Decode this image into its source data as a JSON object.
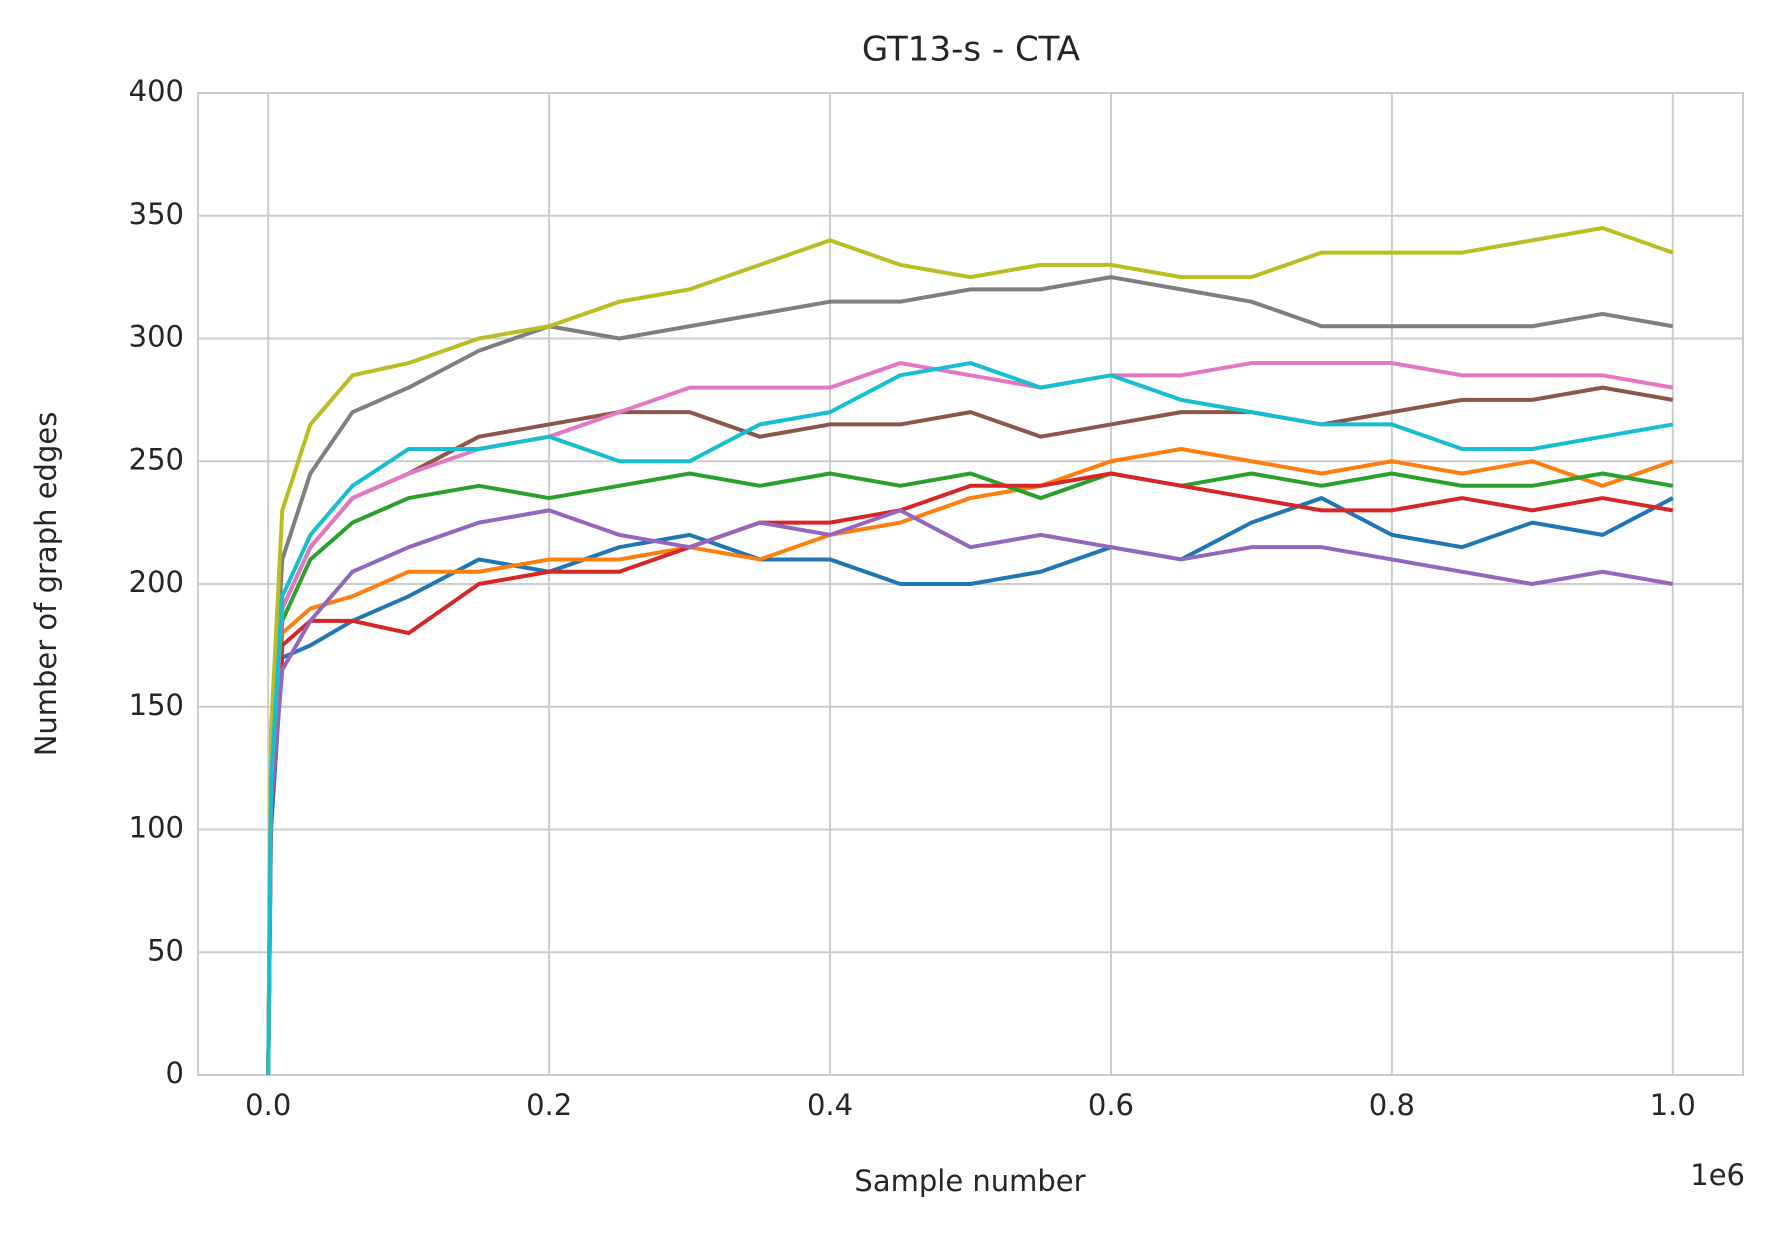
{
  "chart_data": {
    "type": "line",
    "title": "GT13-s - CTA",
    "x_label": "Sample number",
    "y_label": "Number of graph edges",
    "x_offset_label": "1e6",
    "x": [
      0,
      0.002,
      0.01,
      0.03,
      0.06,
      0.1,
      0.15,
      0.2,
      0.25,
      0.3,
      0.35,
      0.4,
      0.45,
      0.5,
      0.55,
      0.6,
      0.65,
      0.7,
      0.75,
      0.8,
      0.85,
      0.9,
      0.95,
      1.0
    ],
    "series": [
      {
        "color": "#1f77b4",
        "values": [
          0,
          100,
          170,
          175,
          185,
          195,
          210,
          205,
          215,
          220,
          210,
          210,
          200,
          200,
          205,
          215,
          210,
          225,
          235,
          220,
          215,
          225,
          220,
          235
        ]
      },
      {
        "color": "#ff7f0e",
        "values": [
          0,
          110,
          180,
          190,
          195,
          205,
          205,
          210,
          210,
          215,
          210,
          220,
          225,
          235,
          240,
          250,
          255,
          250,
          245,
          250,
          245,
          250,
          240,
          250
        ]
      },
      {
        "color": "#2ca02c",
        "values": [
          0,
          115,
          185,
          210,
          225,
          235,
          240,
          235,
          240,
          245,
          240,
          245,
          240,
          245,
          235,
          245,
          240,
          245,
          240,
          245,
          240,
          240,
          245,
          240
        ]
      },
      {
        "color": "#d62728",
        "values": [
          0,
          105,
          175,
          185,
          185,
          180,
          200,
          205,
          205,
          215,
          225,
          225,
          230,
          240,
          240,
          245,
          240,
          235,
          230,
          230,
          235,
          230,
          235,
          230
        ]
      },
      {
        "color": "#9467bd",
        "values": [
          0,
          110,
          165,
          185,
          205,
          215,
          225,
          230,
          220,
          215,
          225,
          220,
          230,
          215,
          220,
          215,
          210,
          215,
          215,
          210,
          205,
          200,
          205,
          200
        ]
      },
      {
        "color": "#8c564b",
        "values": [
          0,
          120,
          190,
          215,
          235,
          245,
          260,
          265,
          270,
          270,
          260,
          265,
          265,
          270,
          260,
          265,
          270,
          270,
          265,
          270,
          275,
          275,
          280,
          275
        ]
      },
      {
        "color": "#e377c2",
        "values": [
          0,
          120,
          190,
          215,
          235,
          245,
          255,
          260,
          270,
          280,
          280,
          280,
          290,
          285,
          280,
          285,
          285,
          290,
          290,
          290,
          285,
          285,
          285,
          280
        ]
      },
      {
        "color": "#7f7f7f",
        "values": [
          0,
          130,
          210,
          245,
          270,
          280,
          295,
          305,
          300,
          305,
          310,
          315,
          315,
          320,
          320,
          325,
          320,
          315,
          305,
          305,
          305,
          305,
          310,
          305
        ]
      },
      {
        "color": "#bcbd22",
        "values": [
          0,
          140,
          230,
          265,
          285,
          290,
          300,
          305,
          315,
          320,
          330,
          340,
          330,
          325,
          330,
          330,
          325,
          325,
          335,
          335,
          335,
          340,
          345,
          335
        ]
      },
      {
        "color": "#17becf",
        "values": [
          0,
          120,
          195,
          220,
          240,
          255,
          255,
          260,
          250,
          250,
          265,
          270,
          285,
          290,
          280,
          285,
          275,
          270,
          265,
          265,
          255,
          255,
          260,
          265
        ]
      }
    ],
    "xlim": [
      -0.05,
      1.05
    ],
    "xticks": [
      {
        "value": 0,
        "label": "0.0"
      },
      {
        "value": 0.2,
        "label": "0.2"
      },
      {
        "value": 0.4,
        "label": "0.4"
      },
      {
        "value": 0.6,
        "label": "0.6"
      },
      {
        "value": 0.8,
        "label": "0.8"
      },
      {
        "value": 1,
        "label": "1.0"
      }
    ],
    "ylim": [
      0,
      400
    ],
    "yticks": [
      0,
      50,
      100,
      150,
      200,
      250,
      300,
      350,
      400
    ],
    "grid": true
  }
}
